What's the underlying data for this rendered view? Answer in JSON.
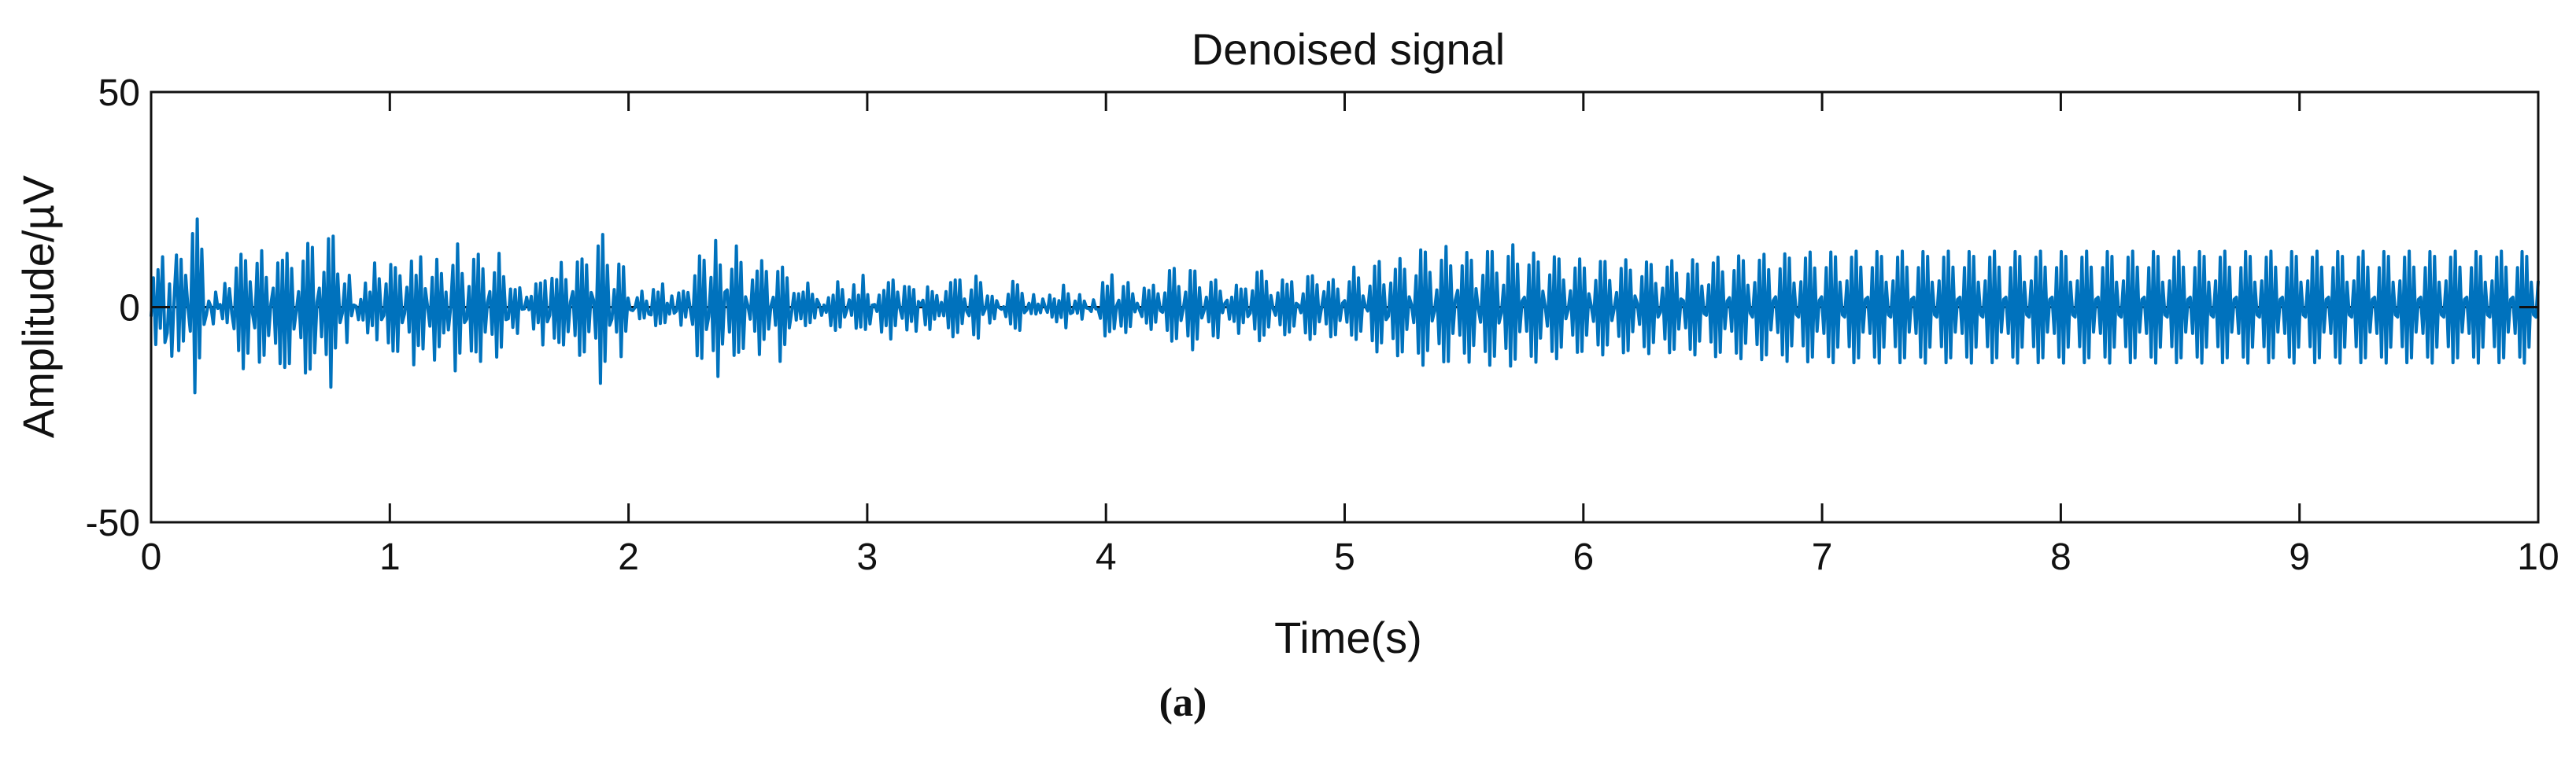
{
  "chart_data": {
    "type": "line",
    "title": "Denoised signal",
    "xlabel": "Time(s)",
    "ylabel": "Amplitude/µV",
    "xlim": [
      0,
      10
    ],
    "ylim": [
      -50,
      50
    ],
    "xticks": [
      0,
      1,
      2,
      3,
      4,
      5,
      6,
      7,
      8,
      9,
      10
    ],
    "yticks": [
      -50,
      0,
      50
    ],
    "grid": false,
    "line_color": "#0072BD",
    "sample_rate_hz": 100,
    "series": [
      {
        "values": [
          -2.2,
          6.8,
          -8.7,
          8.7,
          -4.9,
          11.7,
          -8.2,
          -6,
          5.4,
          -11.4,
          2.2,
          12.1,
          -10.1,
          11.1,
          -7.9,
          7.4,
          -0.1,
          -5.6,
          17.1,
          -19.9,
          20.5,
          -11.8,
          13.5,
          -4,
          -1.7,
          1.4,
          0.1,
          -3.9,
          3.5,
          -0.3,
          0.6,
          -2.7,
          5.5,
          -3.6,
          4.3,
          -1.4,
          -5,
          9.1,
          -10.1,
          12.3,
          -14.3,
          10.8,
          -10.7,
          5.9,
          -1.5,
          -4.8,
          10.2,
          -12.8,
          13.1,
          -11.2,
          6.9,
          -6.6,
          0.8,
          4.4,
          -8.4,
          10.3,
          -13.1,
          10.9,
          -14,
          12.5,
          -13.1,
          9,
          -5.1,
          -1,
          3.6,
          -7.1,
          10.7,
          -15.3,
          14.8,
          -14.4,
          13.9,
          -10.6,
          1.1,
          4.4,
          -6.9,
          8.1,
          -11,
          15.9,
          -18.6,
          16.5,
          -9.5,
          7.7,
          -3.6,
          -1.4,
          5.4,
          -8.2,
          7.4,
          -2,
          0.5,
          0.2,
          -2.9,
          1.8,
          -3,
          5.6,
          -6,
          3.5,
          -4.3,
          10.3,
          -7.6,
          6.6,
          -2.9,
          -1.9,
          5.4,
          -8.3,
          9.9,
          -10.2,
          9.2,
          -10.3,
          7.3,
          -3.6,
          -1.5,
          4.6,
          -5.8,
          10.7,
          -13.4,
          7.4,
          -8.9,
          11.7,
          -9.7,
          4.3,
          0.1,
          -4.4,
          6.9,
          -12.3,
          11.1,
          -9.2,
          7.8,
          -6,
          3.5,
          -5.3,
          -0.1,
          9.7,
          -14.8,
          14.7,
          -10.7,
          7.8,
          -3.6,
          -2.8,
          4.8,
          -10.2,
          11.1,
          -10.4,
          12.3,
          -12.6,
          8.9,
          -5.8,
          1.1,
          3.6,
          -6.3,
          8,
          -11.6,
          12.5,
          -9.3,
          7.1,
          -2.9,
          -2.7,
          4.2,
          -4.7,
          4.1,
          -6.1,
          4.5,
          -0.5,
          -0.4,
          2.3,
          -0.6,
          2.5,
          -5.1,
          5.4,
          -3.6,
          5.6,
          -8.8,
          6.1,
          -3.4,
          -1.9,
          6.7,
          -7.2,
          6.4,
          -8.2,
          10.4,
          -8.8,
          6.4,
          -5.7,
          1.2,
          3.6,
          -6.6,
          10.5,
          -11.2,
          11.2,
          -10.4,
          9.8,
          -5.7,
          3.4,
          1.7,
          -7.2,
          14.2,
          -17.7,
          16.9,
          -12.6,
          9.7,
          -4.2,
          -2.8,
          4.1,
          -5.8,
          10,
          -11.5,
          9.4,
          -5.6,
          2.1,
          -0.6,
          -0.8,
          -0.1,
          2.2,
          -2.7,
          3.7,
          -2.5,
          1.4,
          -1.6,
          -1.8,
          4.1,
          -4.3,
          3.5,
          -3.8,
          5.4,
          -3.6,
          0.9,
          -1.6,
          2.6,
          -1.4,
          -0.9,
          3.3,
          -4.2,
          3.7,
          -2.3,
          3.4,
          -0.6,
          -4,
          7.3,
          -11.3,
          11.9,
          -11.9,
          10.9,
          -5.2,
          -2.2,
          6.9,
          -10.1,
          15.5,
          -16.1,
          9.8,
          -8.6,
          3.5,
          4,
          -5.8,
          8.8,
          -11.2,
          14.2,
          -10.5,
          10.4,
          -9.6,
          2.4,
          0.3,
          -2.8,
          6.3,
          -5.6,
          8.4,
          -11,
          10.8,
          -7.5,
          8.3,
          -5.1,
          0.2,
          2.3,
          -4.2,
          8.3,
          -12.6,
          9.3,
          -8.7,
          6.8,
          -4.8,
          -1.1,
          3.2,
          -3,
          3.1,
          -2.7,
          3.5,
          -4.3,
          5.6,
          -3.6,
          3,
          -2.5,
          1.8,
          0.6,
          -1.9,
          0.5,
          -1.2,
          2.2,
          -4.3,
          2.8,
          -5.4,
          5.9,
          -4.6,
          4.1,
          -2.3,
          -0.6,
          1.7,
          -1.9,
          5.2,
          -4.9,
          2.8,
          -4.6,
          7.4,
          -5.2,
          2.9,
          -3.9,
          0.5,
          0.6,
          -1,
          2.8,
          -5.8,
          3.9,
          -4.3,
          5.7,
          -7.4,
          6.3,
          -4.3,
          3.5,
          -0.4,
          -2.6,
          4.8,
          -5.3,
          4.7,
          -3.3,
          4.1,
          -5.6,
          1.3,
          0.4,
          1.6,
          -4.1,
          4.7,
          -5.2,
          3.6,
          -2.8,
          2.7,
          -2,
          1.1,
          -2,
          3.6,
          -4.8,
          5.7,
          -6.9,
          6.3,
          -5.9,
          6.3,
          -3.8,
          1.9,
          -1,
          -2,
          4,
          -6.4,
          7.2,
          -7.2,
          5.7,
          -1.7,
          -0.5,
          2.6,
          -3.7,
          2.5,
          -2.7,
          1.5,
          -0.1,
          -0.5,
          0.1,
          -2.2,
          3,
          -3.9,
          6,
          -4.9,
          5.2,
          -5.4,
          3.2,
          -1.3,
          -0.7,
          0.9,
          -1.5,
          2.9,
          -1.6,
          0.7,
          -1.3,
          1.9,
          0.1,
          -1.2,
          2.8,
          -2.3,
          1.9,
          -3.4,
          1.5,
          -2.4,
          5.1,
          -4.8,
          3.1,
          -1.5,
          -1.2,
          1.4,
          -1.4,
          2.9,
          -2.8,
          1.4,
          -0.2,
          -0.3,
          -1,
          1.7,
          -0.4,
          -0.5,
          -2.6,
          5.7,
          -6.7,
          4.9,
          -5.7,
          7.5,
          -5,
          0.3,
          1.6,
          -4.4,
          4.8,
          -5.9,
          5.7,
          -4.5,
          3.1,
          -1.1,
          0.9,
          -0.7,
          -2.2,
          4.4,
          -3.7,
          3.9,
          -5.2,
          5.1,
          -3.5,
          3.1,
          -0.8,
          -1.2,
          3.3,
          -5.4,
          8.5,
          -7.9,
          9,
          -7.3,
          4.8,
          -3.1,
          -0.2,
          3.5,
          -6.7,
          8.5,
          -9.9,
          8.4,
          -7.4,
          4.5,
          -2.5,
          -0.8,
          2.3,
          -3.4,
          5.8,
          -6.7,
          6.3,
          -7.1,
          3.7,
          -1.3,
          0.9,
          1.6,
          -2.8,
          2.3,
          -3.3,
          5.1,
          -6.1,
          4.2,
          -3.6,
          4.2,
          -2.2,
          -1.4,
          3.8,
          -5.1,
          8.1,
          -7.8,
          8.4,
          -6.5,
          6,
          -4.6,
          2.7,
          -0.4,
          -1.9,
          3.3,
          -4.1,
          6.3,
          -6.4,
          5.3,
          -5.8,
          5.9,
          -4.4,
          0.9,
          0.5,
          -1.3,
          3.1,
          -6,
          7.1,
          -7.5,
          7.3,
          -6.2,
          5.2,
          -3.4,
          -0.1,
          3.6,
          -3.9,
          5.8,
          -6.9,
          6.4,
          -6.4,
          4.2,
          -3.1,
          0.9,
          1.5,
          -3.5,
          5.9,
          -6.5,
          9.3,
          -7.5,
          6.8,
          -5.6,
          2.6,
          0.2,
          -0.9,
          4.9,
          -7.8,
          9.5,
          -10.4,
          10.6,
          -8.3,
          5.2,
          -2.9,
          -2.1,
          5.6,
          -7.3,
          8.8,
          -11.3,
          11.3,
          -10.4,
          8.8,
          -5.2,
          2.4,
          0.6,
          -3.6,
          7.3,
          -10.7,
          13.3,
          -13.5,
          12.8,
          -10.1,
          8.1,
          -3.2,
          -0.9,
          4,
          -8.5,
          10.9,
          -12.7,
          14.1,
          -12.6,
          9.6,
          -6.1,
          1.6,
          3.9,
          -6.5,
          9.6,
          -10.7,
          12.7,
          -12.8,
          10.9,
          -8.9,
          4.3,
          -0.4,
          -3.5,
          7.4,
          -10.3,
          12.9,
          -13.5,
          12.9,
          -11.4,
          7.9,
          -3.7,
          -1.4,
          5.1,
          -9.6,
          11.8,
          -13.7,
          14.5,
          -12.1,
          10,
          -5.7,
          1.4,
          2.3,
          -5.6,
          9.8,
          -11.4,
          12.6,
          -12.8,
          10.5,
          -7.2,
          3.7,
          0.3,
          -4.4,
          7.5,
          -10.3,
          11.7,
          -12,
          11.2,
          -9.3,
          6.3,
          -2.7,
          -0.6,
          3.8,
          -6.5,
          9.1,
          -10.5,
          11.2,
          -10.3,
          9.1,
          -6.5,
          3.1,
          0.2,
          -3.3,
          6.2,
          -8.8,
          10.6,
          -11.1,
          10.6,
          -8.8,
          6.2,
          -3.1,
          -0.3,
          3.4,
          -6.8,
          9,
          -10.6,
          11,
          -10.1,
          8.6,
          -5.7,
          2.6,
          0.9,
          -4,
          7.1,
          -9.2,
          10.5,
          -10.8,
          9.9,
          -8.2,
          5.5,
          -2.3,
          -1.2,
          4.4,
          -7.4,
          9.3,
          -10.6,
          10.8,
          -9.8,
          7.9,
          -5.1,
          1.9,
          1.5,
          -4.8,
          7.7,
          -9.8,
          11,
          -11.1,
          10,
          -7.9,
          4.9,
          -1.5,
          -1.9,
          5.2,
          -8.1,
          10.3,
          -11.5,
          11.6,
          -10.5,
          8.2,
          -5,
          1.4,
          2.2,
          -5.6,
          8.5,
          -10.7,
          11.9,
          -12,
          10.8,
          -8.4,
          5.1,
          -1.4,
          -2.3,
          5.7,
          -8.7,
          10.9,
          -12.2,
          12.3,
          -11.1,
          8.7,
          -5.3,
          1.5,
          2.4,
          -5.9,
          8.9,
          -11.1,
          12.4,
          -12.6,
          11.4,
          -9,
          5.6,
          -1.7,
          -2.3,
          5.9,
          -9,
          11.4,
          -12.7,
          12.8,
          -11.6,
          9.1,
          -5.6,
          1.6,
          2.4,
          -6.1,
          9.2,
          -11.5,
          12.8,
          -12.9,
          11.7,
          -9.3,
          5.8,
          -1.8,
          -2.3,
          6.1,
          -9.2,
          11.6,
          -12.9,
          13,
          -11.8,
          9.3,
          -5.8,
          1.8,
          2.3,
          -6.1,
          9.2,
          -11.6,
          12.9,
          -13,
          11.8,
          -9.3,
          5.8,
          -1.8,
          -2.3,
          6.1,
          -9.2,
          11.6,
          -12.9,
          13,
          -11.8,
          9.3,
          -5.8,
          1.8,
          2.3,
          -6.1,
          9.2,
          -11.6,
          12.9,
          -13,
          11.8,
          -9.3,
          5.8,
          -1.8,
          -2.3,
          6.1,
          -9.2,
          11.6,
          -12.9,
          13,
          -11.8,
          9.3,
          -5.8,
          1.8,
          2.3,
          -6.1,
          9.2,
          -11.6,
          12.9,
          -13,
          11.8,
          -9.3,
          5.8,
          -1.8,
          -2.3,
          6.1,
          -9.2,
          11.6,
          -12.9,
          13,
          -11.8,
          9.3,
          -5.8,
          1.8,
          2.3,
          -6.1,
          9.2,
          -11.6,
          12.9,
          -13,
          11.8,
          -9.3,
          5.8,
          -1.8,
          -2.3,
          6.1,
          -9.2,
          11.6,
          -12.9,
          13,
          -11.8,
          9.3,
          -5.8,
          1.8,
          2.3,
          -6.1,
          9.2,
          -11.6,
          12.9,
          -13,
          11.8,
          -9.3,
          5.8,
          -1.8,
          -2.3,
          6.1,
          -9.2,
          11.6,
          -12.9,
          13,
          -11.8,
          9.3,
          -5.8,
          1.8,
          2.3,
          -6.1,
          9.2,
          -11.6,
          12.9,
          -13,
          11.8,
          -9.3,
          5.8,
          -1.8,
          -2.3,
          6.1,
          -9.2,
          11.6,
          -12.9,
          13,
          -11.8,
          9.3,
          -5.8,
          1.8,
          2.3,
          -6.1,
          9.2,
          -11.6,
          12.9,
          -13,
          11.8,
          -9.3,
          5.8,
          -1.8,
          -2.3,
          6.1,
          -9.2,
          11.6,
          -12.9,
          13,
          -11.8,
          9.3,
          -5.8,
          1.8,
          2.3,
          -6.1,
          9.2,
          -11.6,
          12.9,
          -13,
          11.8,
          -9.3,
          5.8,
          -1.8,
          -2.3,
          6.1,
          -9.2,
          11.6,
          -12.9,
          13,
          -11.8,
          9.3,
          -5.8,
          1.8,
          2.3,
          -6.1,
          9.2,
          -11.6,
          12.9,
          -13,
          11.8,
          -9.3,
          5.8,
          -1.8,
          -2.3,
          6.1,
          -9.2,
          11.6,
          -12.9,
          13,
          -11.8,
          9.3,
          -5.8,
          1.8,
          2.3,
          -6.1,
          9.2,
          -11.6,
          12.9,
          -13,
          11.8,
          -9.3,
          5.8,
          -1.8,
          -2.3,
          6.1,
          -9.2,
          11.6,
          -12.9,
          13,
          -11.8,
          9.3,
          -5.8,
          1.8,
          2.3,
          -6.1,
          9.2,
          -11.6,
          12.9,
          -13,
          11.8,
          -9.3,
          5.8,
          -1.8,
          -2.3,
          6.1,
          -9.2,
          11.6,
          -12.9,
          13,
          -11.8,
          9.3,
          -5.8,
          1.8,
          2.3,
          -6.1,
          9.2,
          -11.6,
          12.9,
          -13,
          11.8,
          -9.3,
          5.8,
          -1.8,
          -2.3,
          6.1,
          -9.2,
          11.6,
          -12.9,
          13,
          -11.8,
          9.3,
          -5.8,
          1.8,
          2.3,
          -6.1,
          9.2,
          -11.6,
          12.9,
          -13,
          11.8,
          -9.3,
          5.8,
          -1.8,
          -2.3,
          6.1,
          -9.2,
          11.6,
          -12.9,
          13,
          -11.8,
          9.3,
          -5.8,
          1.8,
          2.3,
          -6.1,
          9.2,
          -11.6,
          12.9,
          -13,
          11.8,
          -9.3,
          5.8,
          -1.8,
          -2.3,
          6.1,
          -9.2,
          11.6,
          -12.9,
          13,
          -11.8,
          9.3,
          -5.8,
          1.8,
          2.3,
          -6.1,
          9.2,
          -11.6,
          12.9,
          -13,
          11.8,
          -9.3,
          5.8,
          -1.8,
          -2.3,
          6.1
        ]
      }
    ]
  },
  "caption": "(a)"
}
